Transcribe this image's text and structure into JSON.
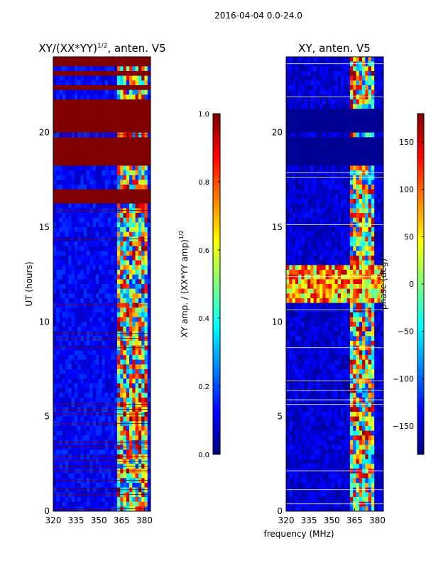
{
  "suptitle": "2016-04-04 0.0-24.0",
  "colors": {
    "background": "#ffffff",
    "axis": "#000000",
    "saturated_red": "#800000",
    "deep_blue": "#00007f",
    "white_line": "#ffffff"
  },
  "chart_data": [
    {
      "type": "heatmap",
      "title": "XY/(XX*YY)",
      "title_sup": "1/2",
      "title_tail": ", anten. V5",
      "xlabel": "",
      "ylabel": "UT (hours)",
      "xlim": [
        320,
        384
      ],
      "ylim": [
        0,
        24
      ],
      "xticks": [
        320,
        335,
        350,
        365,
        380
      ],
      "yticks": [
        0,
        5,
        10,
        15,
        20
      ],
      "colorbar": {
        "label": "XY amp. / (XX*YY amp)",
        "label_sup": "1/2",
        "range": [
          0.0,
          1.0
        ],
        "ticks": [
          "0.0",
          "0.2",
          "0.4",
          "0.6",
          "0.8",
          "1.0"
        ],
        "tick_values": [
          0.0,
          0.2,
          0.4,
          0.6,
          0.8,
          1.0
        ],
        "colormap": "jet"
      },
      "saturated_bands_hours": [
        [
          16.2,
          16.9
        ],
        [
          18.2,
          19.8
        ],
        [
          19.9,
          21.2
        ],
        [
          21.3,
          21.7
        ],
        [
          22.3,
          22.5
        ],
        [
          23.0,
          23.3
        ],
        [
          23.4,
          24.0
        ]
      ],
      "active_band_mhz": [
        362,
        381
      ],
      "base_value": 0.12
    },
    {
      "type": "heatmap",
      "title": "XY, anten. V5",
      "xlabel": "frequency (MHz)",
      "ylabel": "",
      "xlim": [
        320,
        384
      ],
      "ylim": [
        0,
        24
      ],
      "xticks": [
        320,
        335,
        350,
        365,
        380
      ],
      "yticks": [
        0,
        5,
        10,
        15,
        20
      ],
      "colorbar": {
        "label": "phase (deg)",
        "range": [
          -180,
          180
        ],
        "ticks": [
          "−150",
          "−100",
          "−50",
          "0",
          "50",
          "100",
          "150"
        ],
        "tick_values": [
          -150,
          -100,
          -50,
          0,
          50,
          100,
          150
        ],
        "colormap": "jet"
      },
      "saturated_bands_hours": [
        [
          18.3,
          19.7
        ],
        [
          20.0,
          21.2
        ]
      ],
      "active_band_mhz": [
        362,
        378
      ],
      "green_band_hours": [
        11.0,
        13.0
      ],
      "base_value": -150
    }
  ]
}
